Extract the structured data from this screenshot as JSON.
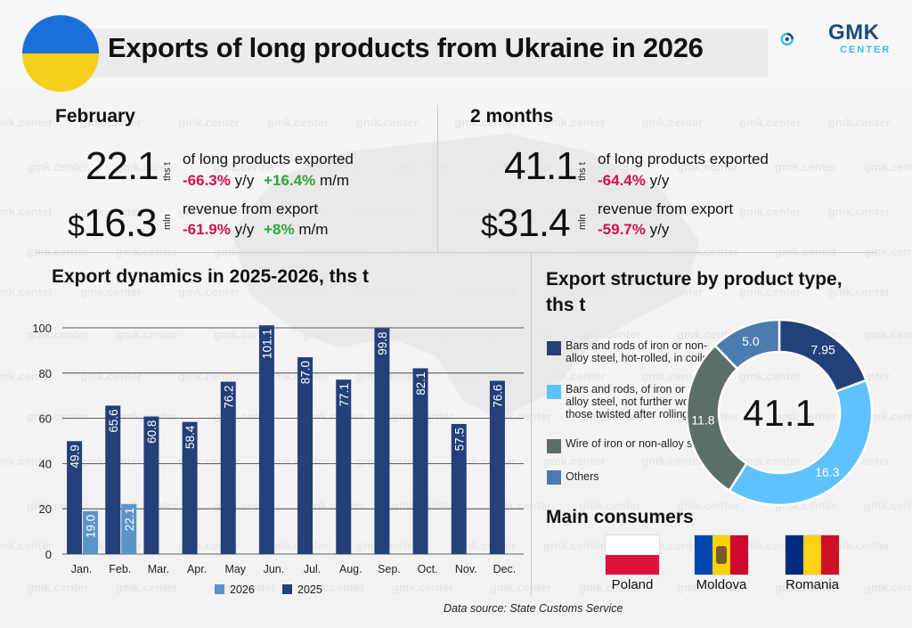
{
  "header": {
    "title": "Exports of long products from Ukraine in 2026",
    "logo_main": "GMK",
    "logo_sub": "CENTER",
    "watermark": "gmk.center"
  },
  "colors": {
    "series_2025": "#24407a",
    "series_2026": "#5b93c9",
    "pie_bars_coils": "#24407a",
    "pie_bars_rods": "#5fc2ff",
    "pie_wire": "#5b6e6a",
    "pie_others": "#4b7cae",
    "negative": "#d0124e",
    "positive": "#2aa83a"
  },
  "february": {
    "heading": "February",
    "volume": "22.1",
    "volume_unit": "ths t",
    "volume_desc": "of long products exported",
    "volume_yy": "-66.3%",
    "volume_yy_suffix": "y/y",
    "volume_mm": "+16.4%",
    "volume_mm_suffix": "m/m",
    "currency": "$",
    "revenue": "16.3",
    "revenue_unit": "mln",
    "revenue_desc": "revenue from export",
    "revenue_yy": "-61.9%",
    "revenue_yy_suffix": "y/y",
    "revenue_mm": "+8%",
    "revenue_mm_suffix": "m/m"
  },
  "two_months": {
    "heading": "2 months",
    "volume": "41.1",
    "volume_unit": "ths t",
    "volume_desc": "of long products exported",
    "volume_yy": "-64.4%",
    "volume_yy_suffix": "y/y",
    "currency": "$",
    "revenue": "31.4",
    "revenue_unit": "mln",
    "revenue_desc": "revenue from export",
    "revenue_yy": "-59.7%",
    "revenue_yy_suffix": "y/y"
  },
  "dynamics": {
    "heading": "Export dynamics in 2025-2026, ths t"
  },
  "structure": {
    "heading_line1": "Export structure by product type,",
    "heading_line2": "ths t"
  },
  "consumers": {
    "heading": "Main consumers",
    "countries": [
      "Poland",
      "Moldova",
      "Romania"
    ]
  },
  "source": "Data source: State Customs Service",
  "chart_data": [
    {
      "type": "bar",
      "title": "Export dynamics in 2025-2026, ths t",
      "categories": [
        "Jan.",
        "Feb.",
        "Mar.",
        "Apr.",
        "May",
        "Jun.",
        "Jul.",
        "Aug.",
        "Sep.",
        "Oct.",
        "Nov.",
        "Dec."
      ],
      "series": [
        {
          "name": "2026",
          "values": [
            19.0,
            22.1,
            null,
            null,
            null,
            null,
            null,
            null,
            null,
            null,
            null,
            null
          ]
        },
        {
          "name": "2025",
          "values": [
            49.9,
            65.6,
            60.8,
            58.4,
            76.2,
            101.1,
            87.0,
            77.1,
            99.8,
            82.1,
            57.5,
            76.6
          ]
        }
      ],
      "labels_2026": [
        "19.0",
        "22.1"
      ],
      "labels_2025": [
        "49.9",
        "65.6",
        "60.8",
        "58.4",
        "76.2",
        "101.1",
        "87.0",
        "77.1",
        "99.8",
        "82.1",
        "57.5",
        "76.6"
      ],
      "ylim": [
        0,
        100
      ],
      "yticks": [
        0,
        20,
        40,
        60,
        80,
        100
      ],
      "grid": true,
      "legend": "bottom"
    },
    {
      "type": "pie",
      "title": "Export structure by product type, ths t",
      "center_label": "41.1",
      "slices": [
        {
          "name": "Bars and rods of iron or non-alloy steel, hot-rolled, in coils",
          "value": 7.95,
          "label": "7.95"
        },
        {
          "name": "Bars and rods, of iron or non-alloy steel, not further worked those twisted after rolling",
          "value": 16.3,
          "label": "16.3"
        },
        {
          "name": "Wire of iron or non-alloy steel",
          "value": 11.8,
          "label": "11.8"
        },
        {
          "name": "Others",
          "value": 5.0,
          "label": "5.0"
        }
      ],
      "legend": "left"
    }
  ]
}
